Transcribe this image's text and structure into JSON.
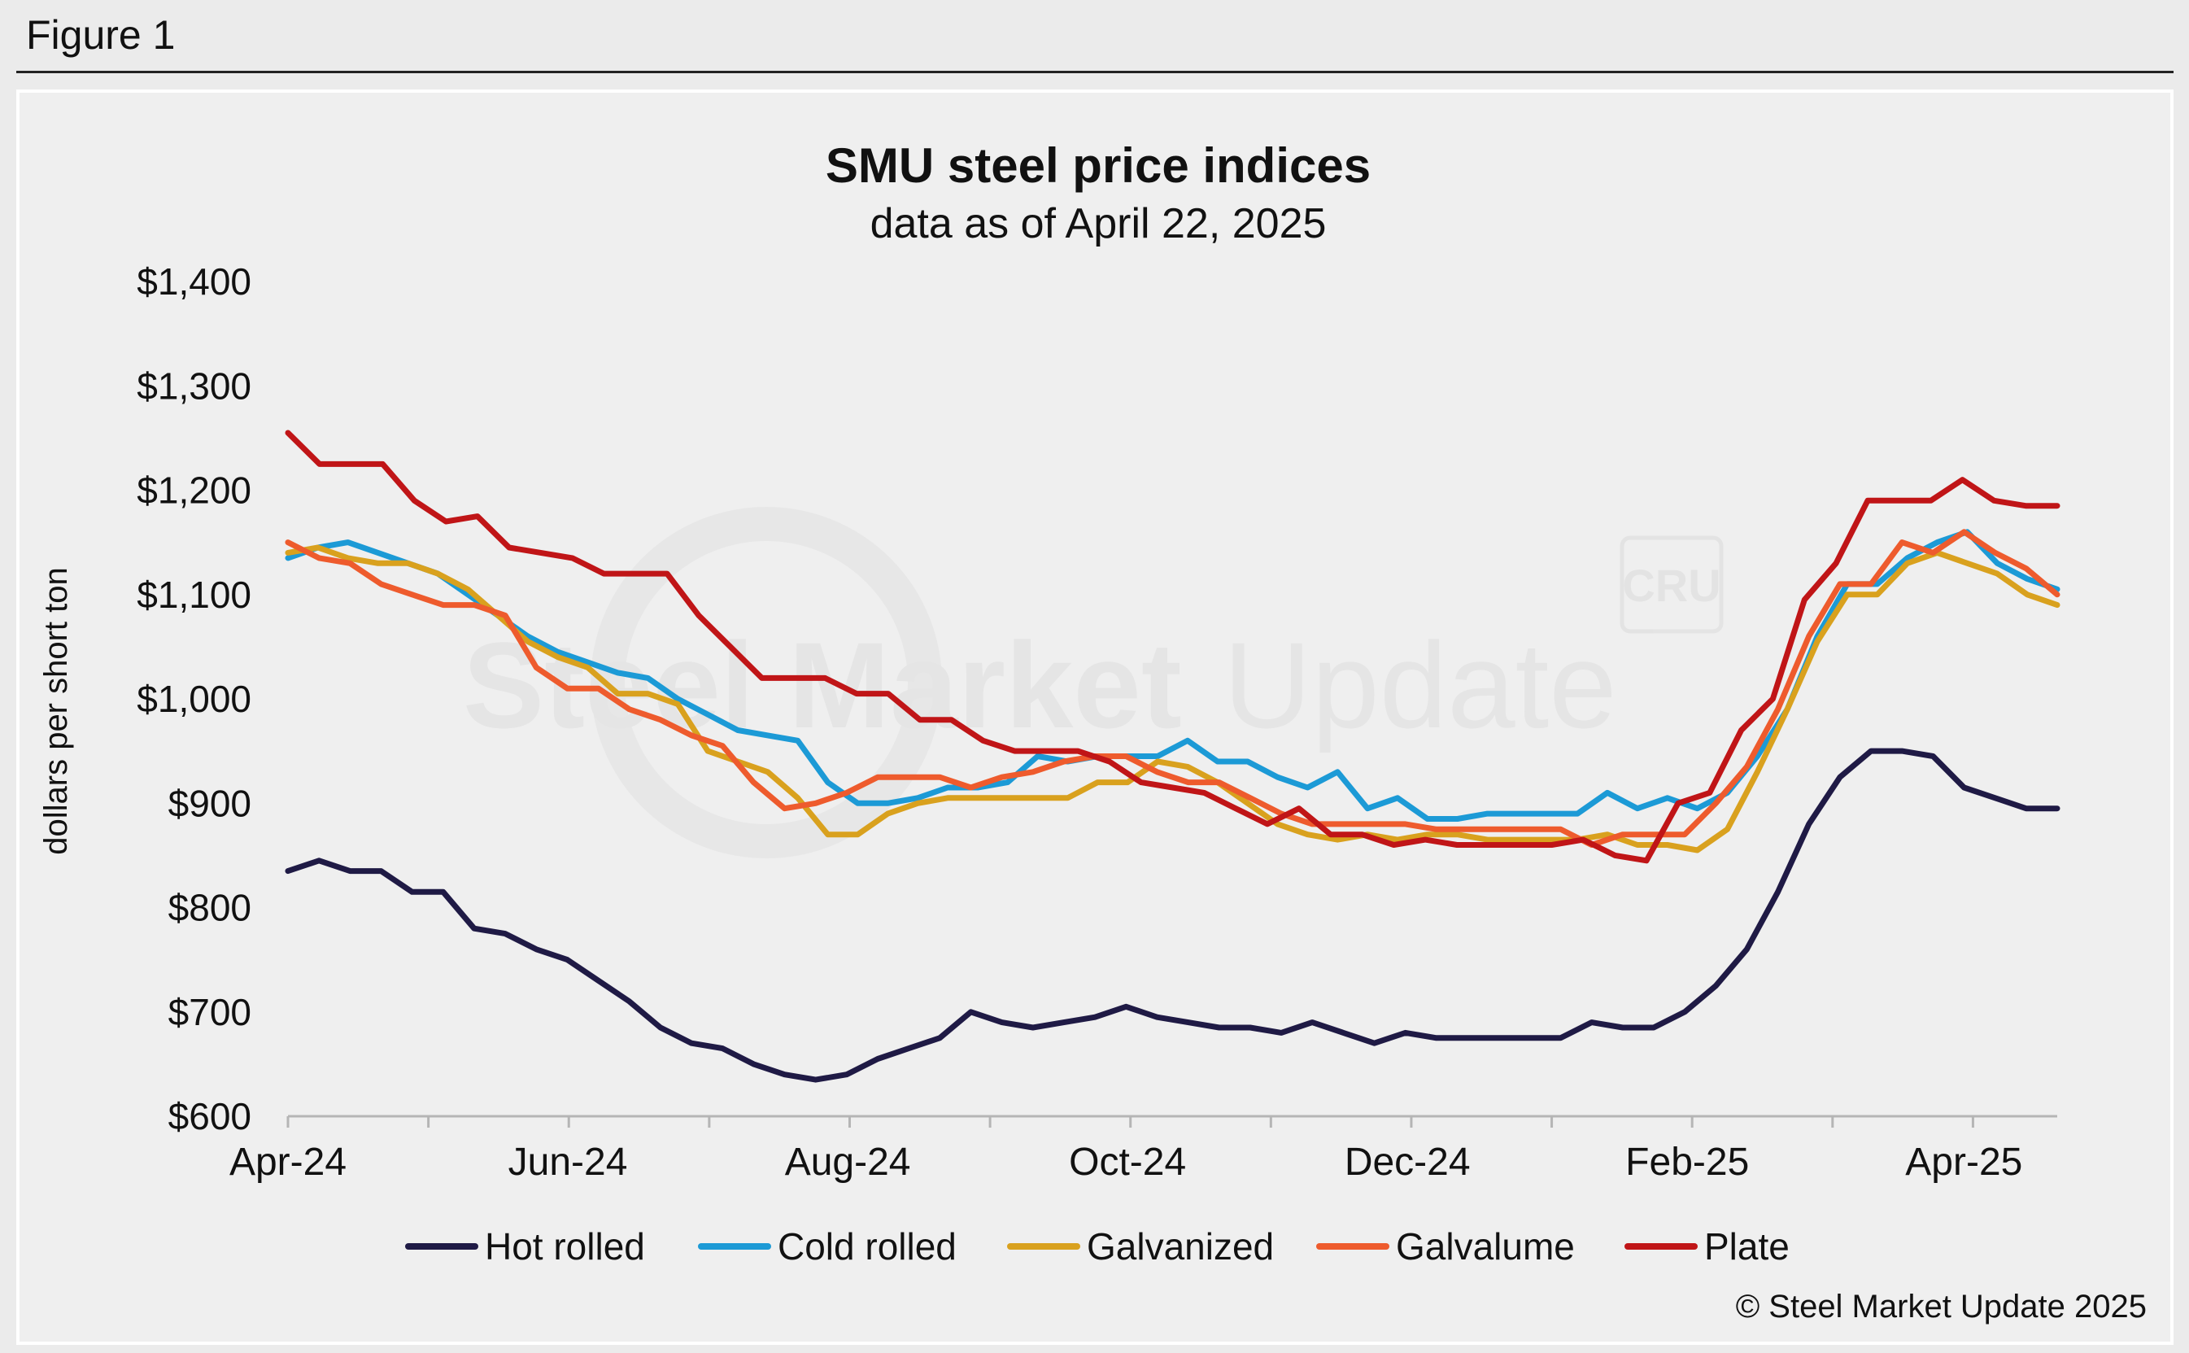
{
  "figure_label": "Figure 1",
  "watermark": {
    "logo": "CRU",
    "text_bold": "Steel Market",
    "text_light": "Update"
  },
  "copyright": "© Steel Market Update 2025",
  "chart_data": {
    "type": "line",
    "title": "SMU steel price indices",
    "subtitle": "data as of April 22, 2025",
    "ylabel": "dollars per short ton",
    "xlabel": "",
    "ylim": [
      600,
      1400
    ],
    "yticks": [
      600,
      700,
      800,
      900,
      1000,
      1100,
      1200,
      1300,
      1400
    ],
    "ytick_labels": [
      "$600",
      "$700",
      "$800",
      "$900",
      "$1,000",
      "$1,100",
      "$1,200",
      "$1,300",
      "$1,400"
    ],
    "x_tick_labels": [
      "Apr-24",
      "Jun-24",
      "Aug-24",
      "Oct-24",
      "Dec-24",
      "Feb-25",
      "Apr-25"
    ],
    "x_tick_positions": [
      0,
      8.7,
      17.4,
      26.1,
      34.8,
      43.5,
      52.1
    ],
    "x_range": [
      0,
      55
    ],
    "grid": false,
    "legend_position": "bottom",
    "series": [
      {
        "name": "Hot rolled",
        "color": "#1f1a45",
        "values": [
          835,
          845,
          835,
          835,
          815,
          815,
          780,
          775,
          760,
          750,
          730,
          710,
          685,
          670,
          665,
          650,
          640,
          635,
          640,
          655,
          665,
          675,
          700,
          690,
          685,
          690,
          695,
          705,
          695,
          690,
          685,
          685,
          680,
          690,
          680,
          670,
          680,
          675,
          675,
          675,
          675,
          675,
          690,
          685,
          685,
          700,
          725,
          760,
          815,
          880,
          925,
          950,
          950,
          945,
          915,
          905,
          895,
          895
        ]
      },
      {
        "name": "Cold rolled",
        "color": "#1c9ad6",
        "values": [
          1135,
          1145,
          1150,
          1140,
          1130,
          1120,
          1100,
          1080,
          1060,
          1045,
          1035,
          1025,
          1020,
          1000,
          985,
          970,
          965,
          960,
          920,
          900,
          900,
          905,
          915,
          915,
          920,
          945,
          940,
          945,
          945,
          945,
          960,
          940,
          940,
          925,
          915,
          930,
          895,
          905,
          885,
          885,
          890,
          890,
          890,
          890,
          910,
          895,
          905,
          895,
          910,
          945,
          990,
          1060,
          1110,
          1110,
          1135,
          1150,
          1160,
          1130,
          1115,
          1105
        ]
      },
      {
        "name": "Galvanized",
        "color": "#d9a11e",
        "values": [
          1140,
          1145,
          1135,
          1130,
          1130,
          1120,
          1105,
          1080,
          1055,
          1040,
          1030,
          1005,
          1005,
          995,
          950,
          940,
          930,
          905,
          870,
          870,
          890,
          900,
          905,
          905,
          905,
          905,
          905,
          920,
          920,
          940,
          935,
          920,
          900,
          880,
          870,
          865,
          870,
          865,
          870,
          870,
          865,
          865,
          865,
          865,
          870,
          860,
          860,
          855,
          875,
          930,
          990,
          1055,
          1100,
          1100,
          1130,
          1140,
          1130,
          1120,
          1100,
          1090
        ]
      },
      {
        "name": "Galvalume",
        "color": "#ee5b2d",
        "values": [
          1150,
          1135,
          1130,
          1110,
          1100,
          1090,
          1090,
          1080,
          1030,
          1010,
          1010,
          990,
          980,
          965,
          955,
          920,
          895,
          900,
          910,
          925,
          925,
          925,
          915,
          925,
          930,
          940,
          945,
          945,
          930,
          920,
          920,
          905,
          890,
          880,
          880,
          880,
          880,
          875,
          875,
          875,
          875,
          875,
          860,
          870,
          870,
          870,
          900,
          935,
          990,
          1060,
          1110,
          1110,
          1150,
          1140,
          1160,
          1140,
          1125,
          1100
        ]
      },
      {
        "name": "Plate",
        "color": "#c01517",
        "values": [
          1255,
          1225,
          1225,
          1225,
          1190,
          1170,
          1175,
          1145,
          1140,
          1135,
          1120,
          1120,
          1120,
          1080,
          1050,
          1020,
          1020,
          1020,
          1005,
          1005,
          980,
          980,
          960,
          950,
          950,
          950,
          940,
          920,
          915,
          910,
          895,
          880,
          895,
          870,
          870,
          860,
          865,
          860,
          860,
          860,
          860,
          865,
          850,
          845,
          900,
          910,
          970,
          1000,
          1095,
          1130,
          1190,
          1190,
          1190,
          1210,
          1190,
          1185,
          1185
        ]
      }
    ]
  }
}
